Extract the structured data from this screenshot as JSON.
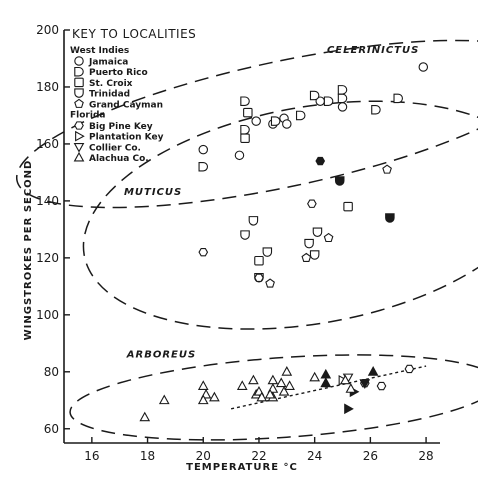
{
  "chart_data": {
    "type": "scatter",
    "xlabel": "TEMPERATURE  °C",
    "ylabel": "WINGSTROKES PER SECOND",
    "xlim": [
      15,
      28.5
    ],
    "ylim": [
      55,
      200
    ],
    "x_ticks": [
      16,
      18,
      20,
      22,
      24,
      26,
      28
    ],
    "y_ticks": [
      60,
      80,
      100,
      120,
      140,
      160,
      180,
      200
    ],
    "x_tick_labels": [
      "16",
      "18",
      "20",
      "22",
      "24",
      "26",
      "28"
    ],
    "y_tick_labels": [
      "60",
      "80",
      "100",
      "120",
      "140",
      "160",
      "180",
      "200"
    ],
    "grid": false,
    "key": {
      "title": "KEY TO LOCALITIES",
      "regions": [
        {
          "name": "West Indies",
          "items": [
            {
              "marker": "circle",
              "label": "Jamaica"
            },
            {
              "marker": "dshape",
              "label": "Puerto Rico"
            },
            {
              "marker": "square",
              "label": "St. Croix"
            },
            {
              "marker": "cup",
              "label": "Trinidad"
            },
            {
              "marker": "pentagon",
              "label": "Grand Cayman"
            }
          ]
        },
        {
          "name": "Florida",
          "items": [
            {
              "marker": "hexagon",
              "label": "Big Pine Key"
            },
            {
              "marker": "triangle-right",
              "label": "Plantation Key"
            },
            {
              "marker": "triangle-down",
              "label": "Collier Co."
            },
            {
              "marker": "triangle-up",
              "label": "Alachua Co."
            }
          ]
        }
      ]
    },
    "groups": [
      {
        "name": "CELERINICTUS",
        "label_at": [
          26.1,
          192
        ],
        "ellipse": {
          "cx": 22.9,
          "cy": 167,
          "rx": 9.8,
          "ry": 22,
          "rot": -12
        }
      },
      {
        "name": "MUTICUS",
        "label_at": [
          18.2,
          142
        ],
        "ellipse": {
          "cx": 23.9,
          "cy": 135,
          "rx": 8.3,
          "ry": 38,
          "rot": -10
        }
      },
      {
        "name": "ARBOREUS",
        "label_at": [
          18.5,
          85
        ],
        "ellipse": {
          "cx": 22.9,
          "cy": 71,
          "rx": 7.7,
          "ry": 14,
          "rot": -4
        }
      }
    ],
    "trend_line": {
      "style": "dashed",
      "points": [
        [
          21,
          67
        ],
        [
          28,
          82
        ]
      ]
    },
    "series": [
      {
        "name": "Jamaica",
        "marker": "circle",
        "filled": false,
        "x": [
          20.0,
          21.3,
          21.9,
          22.5,
          22.9,
          23.0,
          24.2,
          25.0,
          27.9
        ],
        "y": [
          158,
          156,
          168,
          167,
          169,
          167,
          175,
          173,
          187
        ]
      },
      {
        "name": "Puerto Rico",
        "marker": "dshape",
        "filled": false,
        "x": [
          20.0,
          21.5,
          21.5,
          22.6,
          23.5,
          24.0,
          24.5,
          25.0,
          25.0,
          26.2,
          27.0
        ],
        "y": [
          152,
          175,
          165,
          168,
          170,
          177,
          175,
          176,
          179,
          172,
          176
        ]
      },
      {
        "name": "St. Croix",
        "marker": "square",
        "filled": false,
        "x": [
          21.6,
          21.5,
          22.0,
          25.2
        ],
        "y": [
          171,
          162,
          119,
          138
        ]
      },
      {
        "name": "Trinidad",
        "marker": "cup",
        "filled": false,
        "x": [
          21.5,
          21.8,
          22.3,
          22.0,
          23.8,
          24.1,
          24.0
        ],
        "y": [
          128,
          133,
          122,
          113,
          125,
          129,
          121
        ]
      },
      {
        "name": "Grand Cayman",
        "marker": "pentagon",
        "filled": false,
        "x": [
          22.4,
          23.7,
          24.5,
          26.6
        ],
        "y": [
          111,
          120,
          127,
          151
        ]
      },
      {
        "name": "Trinidad (filled)",
        "marker": "cup",
        "filled": true,
        "x": [
          24.9,
          26.7
        ],
        "y": [
          147,
          134
        ]
      },
      {
        "name": "Big Pine Key",
        "marker": "hexagon",
        "filled": false,
        "x": [
          20.0,
          22.0,
          23.9,
          25.8,
          26.4,
          27.4
        ],
        "y": [
          122,
          113,
          139,
          76,
          75,
          81
        ]
      },
      {
        "name": "Big Pine Key (filled)",
        "marker": "hexagon",
        "filled": true,
        "x": [
          24.2
        ],
        "y": [
          154
        ]
      },
      {
        "name": "Plantation Key",
        "marker": "triangle-right",
        "filled": true,
        "x": [
          25.2,
          25.4
        ],
        "y": [
          67,
          73
        ]
      },
      {
        "name": "Plantation Key (open)",
        "marker": "triangle-right",
        "filled": false,
        "x": [
          25.0
        ],
        "y": [
          77
        ]
      },
      {
        "name": "Collier Co.",
        "marker": "triangle-down",
        "filled": false,
        "x": [
          25.2
        ],
        "y": [
          78
        ]
      },
      {
        "name": "Collier Co. (filled)",
        "marker": "triangle-down",
        "filled": true,
        "x": [
          25.8
        ],
        "y": [
          76
        ]
      },
      {
        "name": "Alachua Co.",
        "marker": "triangle-up",
        "filled": false,
        "x": [
          17.9,
          18.6,
          20.0,
          20.1,
          20.0,
          20.4,
          21.4,
          21.9,
          21.8,
          22.0,
          22.5,
          22.5,
          22.5,
          22.8,
          23.0,
          22.9,
          22.1,
          22.4,
          23.1,
          24.0,
          24.4,
          25.1,
          25.3
        ],
        "y": [
          64,
          70,
          75,
          72,
          70,
          71,
          75,
          72,
          77,
          73,
          77,
          74,
          71,
          76,
          80,
          73,
          71,
          72,
          75,
          78,
          76,
          77,
          74
        ]
      },
      {
        "name": "Alachua Co. (filled)",
        "marker": "triangle-up",
        "filled": true,
        "x": [
          24.4,
          24.4,
          26.1
        ],
        "y": [
          79,
          76,
          80
        ]
      }
    ]
  }
}
